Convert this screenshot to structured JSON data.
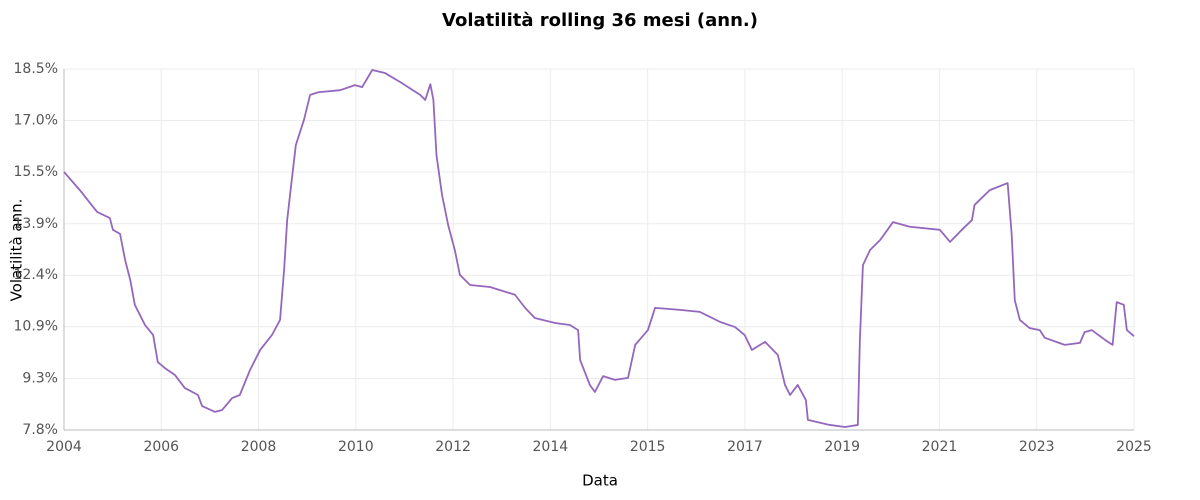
{
  "chart_data": {
    "type": "line",
    "title": "Volatilità rolling 36 mesi (ann.)",
    "x_label": "Data",
    "y_label": "Volatilità ann.",
    "x": [
      2004.0,
      2004.31,
      2004.65,
      2004.9,
      2004.96,
      2005.1,
      2005.2,
      2005.3,
      2005.39,
      2005.59,
      2005.75,
      2005.84,
      2005.98,
      2006.18,
      2006.37,
      2006.63,
      2006.71,
      2006.96,
      2007.1,
      2007.3,
      2007.45,
      2007.65,
      2007.85,
      2008.08,
      2008.24,
      2008.32,
      2008.38,
      2008.47,
      2008.55,
      2008.71,
      2008.83,
      2008.99,
      2009.42,
      2009.71,
      2009.85,
      2010.05,
      2010.3,
      2010.6,
      2010.99,
      2011.09,
      2011.19,
      2011.25,
      2011.31,
      2011.42,
      2011.54,
      2011.67,
      2011.77,
      2011.97,
      2012.36,
      2012.85,
      2013.05,
      2013.24,
      2013.64,
      2013.93,
      2014.09,
      2014.13,
      2014.32,
      2014.42,
      2014.58,
      2014.81,
      2015.07,
      2015.21,
      2015.46,
      2015.6,
      2016.09,
      2016.48,
      2016.88,
      2017.17,
      2017.36,
      2017.5,
      2017.76,
      2018.01,
      2018.15,
      2018.25,
      2018.4,
      2018.56,
      2018.6,
      2019.03,
      2019.33,
      2019.58,
      2019.62,
      2019.68,
      2019.82,
      2020.02,
      2020.27,
      2020.6,
      2021.19,
      2021.39,
      2021.62,
      2021.82,
      2021.87,
      2022.17,
      2022.52,
      2022.6,
      2022.66,
      2022.76,
      2022.95,
      2023.15,
      2023.25,
      2023.64,
      2023.94,
      2024.03,
      2024.17,
      2024.43,
      2024.58,
      2024.66,
      2024.8,
      2024.86,
      2025.0
    ],
    "series": [
      {
        "name": "Volatilità rolling 36 mesi",
        "color": "#9467bd",
        "values": [
          15.47,
          14.93,
          14.28,
          14.1,
          13.75,
          13.63,
          12.85,
          12.26,
          11.52,
          10.92,
          10.62,
          9.82,
          9.64,
          9.43,
          9.05,
          8.84,
          8.51,
          8.34,
          8.39,
          8.75,
          8.84,
          9.58,
          10.18,
          10.62,
          11.07,
          12.56,
          14.04,
          15.23,
          16.27,
          17.02,
          17.76,
          17.84,
          17.9,
          18.05,
          17.99,
          18.5,
          18.41,
          18.14,
          17.76,
          17.61,
          18.08,
          17.61,
          15.97,
          14.78,
          13.89,
          13.15,
          12.41,
          12.11,
          12.05,
          11.82,
          11.43,
          11.13,
          10.98,
          10.92,
          10.77,
          9.88,
          9.14,
          8.93,
          9.4,
          9.29,
          9.35,
          10.33,
          10.77,
          11.43,
          11.37,
          11.31,
          11.01,
          10.86,
          10.62,
          10.18,
          10.42,
          10.03,
          9.14,
          8.84,
          9.14,
          8.69,
          8.1,
          7.95,
          7.89,
          7.95,
          10.48,
          12.7,
          13.15,
          13.45,
          13.98,
          13.84,
          13.75,
          13.39,
          13.75,
          14.04,
          14.49,
          14.93,
          15.14,
          13.6,
          11.66,
          11.07,
          10.83,
          10.77,
          10.54,
          10.33,
          10.39,
          10.71,
          10.77,
          10.48,
          10.33,
          11.6,
          11.52,
          10.77,
          10.59
        ]
      }
    ],
    "xlim": [
      2004,
      2025
    ],
    "xticks": [
      {
        "value": 2004,
        "label": "2004"
      },
      {
        "value": 2005.909,
        "label": "2006"
      },
      {
        "value": 2007.818,
        "label": "2008"
      },
      {
        "value": 2009.727,
        "label": "2010"
      },
      {
        "value": 2011.636,
        "label": "2012"
      },
      {
        "value": 2013.545,
        "label": "2014"
      },
      {
        "value": 2015.455,
        "label": "2015"
      },
      {
        "value": 2017.364,
        "label": "2017"
      },
      {
        "value": 2019.273,
        "label": "2019"
      },
      {
        "value": 2021.182,
        "label": "2021"
      },
      {
        "value": 2023.091,
        "label": "2023"
      },
      {
        "value": 2025,
        "label": "2025"
      }
    ],
    "ylim": [
      7.8,
      18.53
    ],
    "yticks": [
      {
        "value": 7.8,
        "label": "7.8%"
      },
      {
        "value": 9.33,
        "label": "9.3%"
      },
      {
        "value": 10.87,
        "label": "10.9%"
      },
      {
        "value": 12.4,
        "label": "12.4%"
      },
      {
        "value": 13.93,
        "label": "13.9%"
      },
      {
        "value": 15.47,
        "label": "15.5%"
      },
      {
        "value": 17.0,
        "label": "17.0%"
      },
      {
        "value": 18.53,
        "label": "18.5%"
      }
    ],
    "grid": true
  }
}
